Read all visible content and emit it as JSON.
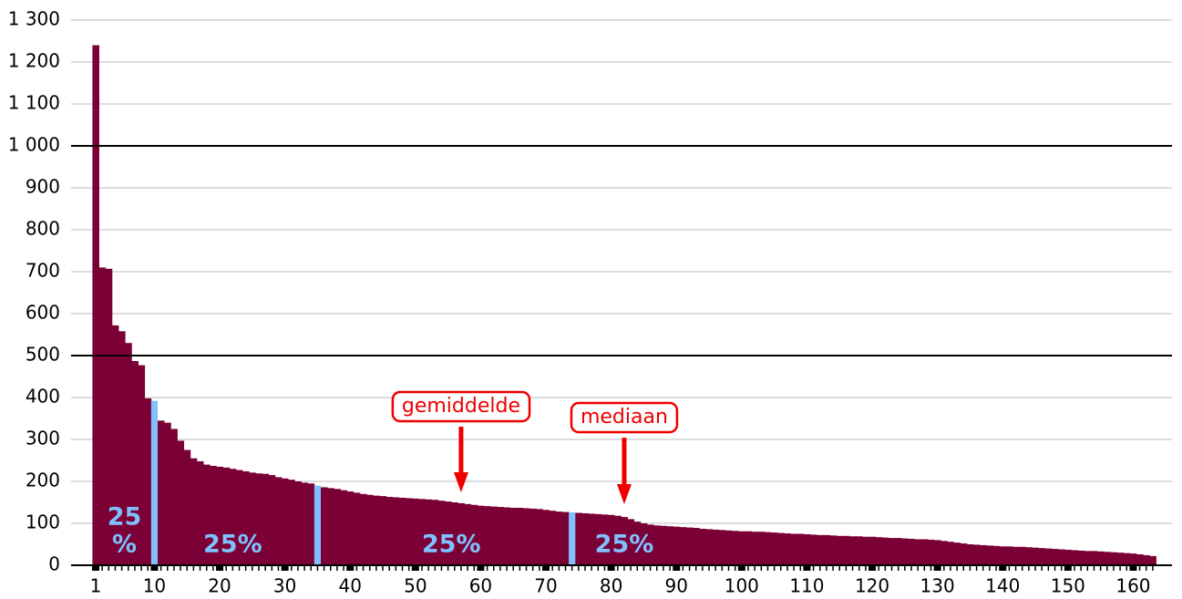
{
  "chart_data": {
    "type": "bar",
    "x": [
      1,
      2,
      3,
      4,
      5,
      6,
      7,
      8,
      9,
      10,
      11,
      12,
      13,
      14,
      15,
      16,
      17,
      18,
      19,
      20,
      21,
      22,
      23,
      24,
      25,
      26,
      27,
      28,
      29,
      30,
      31,
      32,
      33,
      34,
      35,
      36,
      37,
      38,
      39,
      40,
      41,
      42,
      43,
      44,
      45,
      46,
      47,
      48,
      49,
      50,
      51,
      52,
      53,
      54,
      55,
      56,
      57,
      58,
      59,
      60,
      61,
      62,
      63,
      64,
      65,
      66,
      67,
      68,
      69,
      70,
      71,
      72,
      73,
      74,
      75,
      76,
      77,
      78,
      79,
      80,
      81,
      82,
      83,
      84,
      85,
      86,
      87,
      88,
      89,
      90,
      91,
      92,
      93,
      94,
      95,
      96,
      97,
      98,
      99,
      100,
      101,
      102,
      103,
      104,
      105,
      106,
      107,
      108,
      109,
      110,
      111,
      112,
      113,
      114,
      115,
      116,
      117,
      118,
      119,
      120,
      121,
      122,
      123,
      124,
      125,
      126,
      127,
      128,
      129,
      130,
      131,
      132,
      133,
      134,
      135,
      136,
      137,
      138,
      139,
      140,
      141,
      142,
      143,
      144,
      145,
      146,
      147,
      148,
      149,
      150,
      151,
      152,
      153,
      154,
      155,
      156,
      157,
      158,
      159,
      160,
      161,
      162,
      163
    ],
    "values": [
      1240,
      710,
      707,
      572,
      558,
      530,
      487,
      477,
      398,
      392,
      345,
      340,
      325,
      297,
      275,
      255,
      248,
      240,
      237,
      235,
      233,
      230,
      227,
      224,
      221,
      219,
      218,
      215,
      210,
      207,
      204,
      200,
      197,
      195,
      190,
      186,
      184,
      182,
      179,
      176,
      173,
      170,
      168,
      166,
      165,
      163,
      162,
      161,
      160,
      159,
      158,
      157,
      156,
      154,
      152,
      150,
      148,
      146,
      144,
      142,
      141,
      140,
      139,
      138,
      137,
      137,
      136,
      135,
      134,
      132,
      130,
      128,
      127,
      126,
      125,
      124,
      123,
      122,
      121,
      120,
      118,
      115,
      110,
      104,
      100,
      97,
      95,
      94,
      93,
      92,
      91,
      90,
      89,
      87,
      86,
      85,
      84,
      83,
      82,
      81,
      81,
      80,
      80,
      79,
      78,
      77,
      76,
      75,
      75,
      74,
      73,
      72,
      72,
      71,
      70,
      70,
      69,
      69,
      68,
      68,
      67,
      66,
      65,
      65,
      64,
      63,
      62,
      62,
      61,
      60,
      58,
      56,
      54,
      52,
      50,
      49,
      48,
      47,
      46,
      45,
      45,
      44,
      44,
      43,
      42,
      41,
      40,
      39,
      38,
      37,
      36,
      35,
      34,
      34,
      33,
      32,
      31,
      30,
      29,
      28,
      26,
      24,
      22
    ],
    "color": "#7a0035",
    "highlight_x": [
      10,
      35,
      74
    ],
    "highlight_color": "#80c0ff",
    "xlim": [
      0.5,
      163.5
    ],
    "xticks": [
      1,
      10,
      20,
      30,
      40,
      50,
      60,
      70,
      80,
      90,
      100,
      110,
      120,
      130,
      140,
      150,
      160
    ],
    "ylim": [
      0,
      1300
    ],
    "yticks": [
      0,
      100,
      200,
      300,
      400,
      500,
      600,
      700,
      800,
      900,
      {
        "value": 1000,
        "label": "1 000"
      },
      {
        "value": 1100,
        "label": "1 100"
      },
      {
        "value": 1200,
        "label": "1 200"
      },
      {
        "value": 1300,
        "label": "1 300"
      }
    ],
    "grid": true,
    "grid_color": "#bbbbbb",
    "major_grid_color": "#000000",
    "major_grid_step": 500,
    "quartile_labels": [
      [
        "25",
        "%"
      ],
      "25%",
      "25%",
      "25%"
    ],
    "annotations": [
      {
        "text": "gemiddelde",
        "x": 57
      },
      {
        "text": "mediaan",
        "x": 82
      }
    ]
  }
}
